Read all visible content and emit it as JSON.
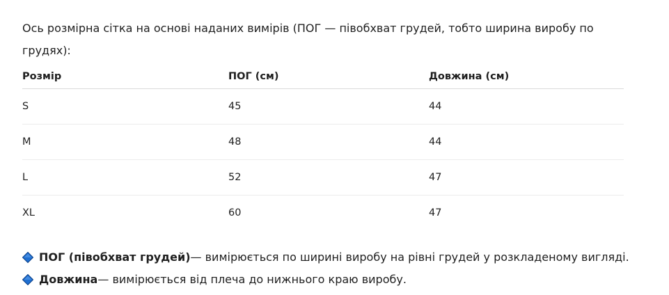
{
  "intro": "Ось розмірна сітка на основі наданих вимірів (ПОГ — півобхват грудей, тобто ширина виробу по грудях):",
  "table": {
    "headers": [
      "Розмір",
      "ПОГ (см)",
      "Довжина (см)"
    ],
    "rows": [
      [
        "S",
        "45",
        "44"
      ],
      [
        "M",
        "48",
        "44"
      ],
      [
        "L",
        "52",
        "47"
      ],
      [
        "XL",
        "60",
        "47"
      ]
    ]
  },
  "notes": [
    {
      "icon": "blue-diamond-icon",
      "term": "ПОГ (півобхват грудей)",
      "text": " — вимірюється по ширині виробу на рівні грудей у розкладеному вигляді."
    },
    {
      "icon": "blue-diamond-icon",
      "term": "Довжина",
      "text": " — вимірюється від плеча до нижнього краю виробу."
    }
  ],
  "colors": {
    "diamond": "#1f6fd1",
    "diamond_border": "#0b3f86"
  }
}
